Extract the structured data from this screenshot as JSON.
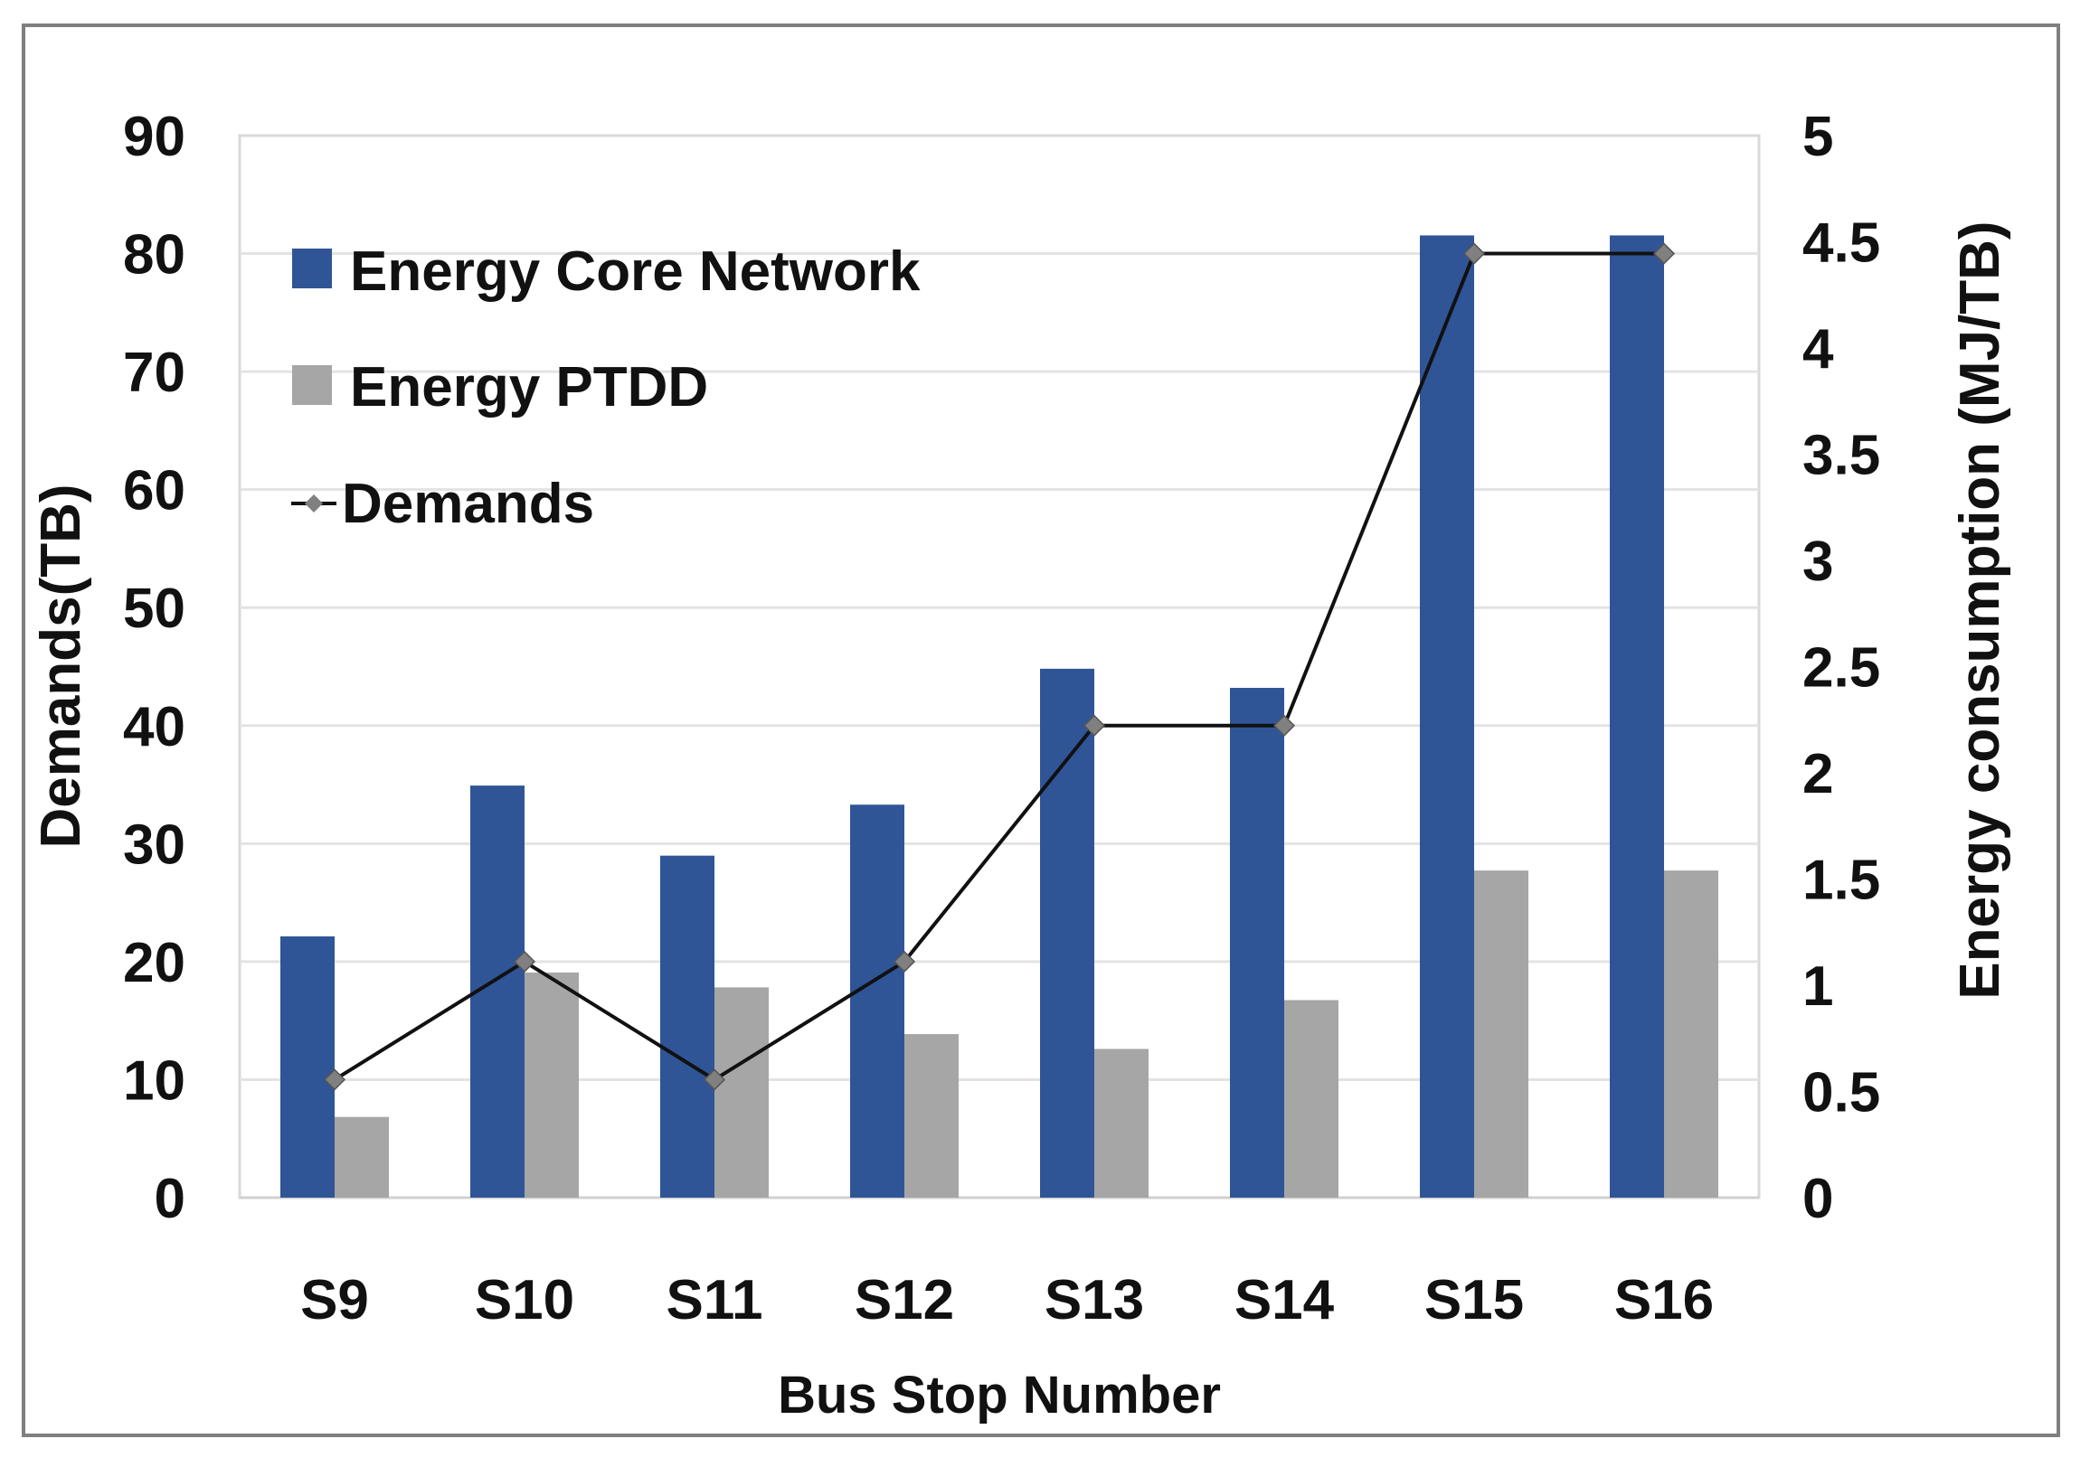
{
  "chart_data": {
    "type": "bar",
    "categories": [
      "S9",
      "S10",
      "S11",
      "S12",
      "S13",
      "S14",
      "S15",
      "S16"
    ],
    "series": [
      {
        "name": "Energy Core Network",
        "axis": "right",
        "color": "#2f5597",
        "values": [
          1.23,
          1.94,
          1.61,
          1.85,
          2.49,
          2.4,
          4.53,
          4.53
        ]
      },
      {
        "name": "Energy PTDD",
        "axis": "right",
        "color": "#a6a6a6",
        "values": [
          0.38,
          1.06,
          0.99,
          0.77,
          0.7,
          0.93,
          1.54,
          1.54
        ]
      },
      {
        "name": "Demands",
        "axis": "left",
        "type": "line",
        "color": "#111111",
        "values": [
          10,
          20,
          10,
          20,
          40,
          40,
          80,
          80
        ]
      }
    ],
    "xlabel": "Bus  Stop Number",
    "ylabel": "Demands(TB)",
    "y2label": "Energy consumption (MJ/TB)",
    "ylim": [
      0,
      90
    ],
    "y2lim": [
      0,
      5
    ],
    "yticks": [
      "0",
      "10",
      "20",
      "30",
      "40",
      "50",
      "60",
      "70",
      "80",
      "90"
    ],
    "y2ticks": [
      "0",
      "0.5",
      "1",
      "1.5",
      "2",
      "2.5",
      "3",
      "3.5",
      "4",
      "4.5",
      "5"
    ],
    "legend": [
      {
        "label": "Energy Core Network"
      },
      {
        "label": "Energy PTDD"
      },
      {
        "label": "Demands"
      }
    ],
    "legend_position": "top-left",
    "grid": true
  }
}
